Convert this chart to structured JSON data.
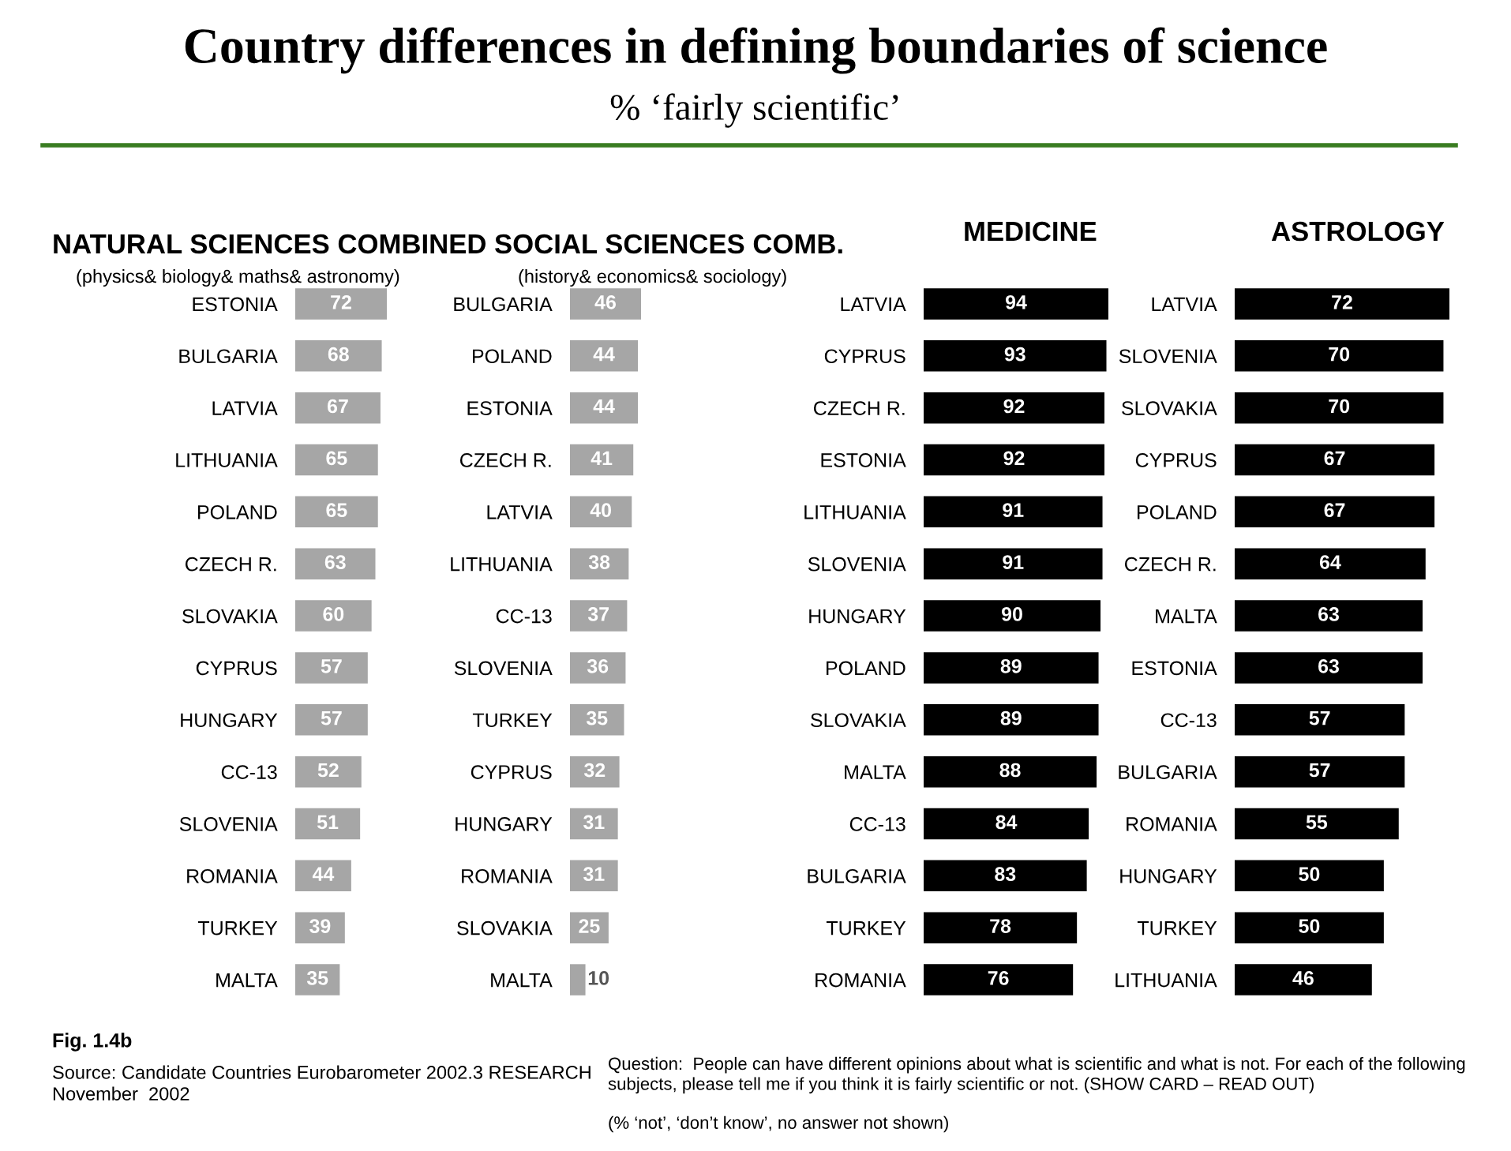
{
  "chart_data": [
    {
      "type": "other",
      "title": "Country differences in defining boundaries of science",
      "subtitle": "% ‘fairly scientific’",
      "annotations": [
        "Fig. 1.4b",
        "Source: Candidate Countries Eurobarometer 2002.3 RESEARCH\nNovember  2002",
        "Question:  People can have different opinions about what is scientific and what is not. For each of the following\nsubjects, please tell me if you think it is fairly scientific or not. (SHOW CARD – READ OUT)",
        "(% ‘not’, ‘don’t know’, no answer not shown)"
      ]
    },
    {
      "type": "bar",
      "orientation": "horizontal",
      "title": "NATURAL SCIENCES COMBINED",
      "subtitle": "(physics& biology& maths& astronomy)",
      "color": "#a6a6a6",
      "data_labels": true,
      "categories": [
        "ESTONIA",
        "BULGARIA",
        "LATVIA",
        "LITHUANIA",
        "POLAND",
        "CZECH R.",
        "SLOVAKIA",
        "CYPRUS",
        "HUNGARY",
        "CC-13",
        "SLOVENIA",
        "ROMANIA",
        "TURKEY",
        "MALTA"
      ],
      "values": [
        72,
        68,
        67,
        65,
        65,
        63,
        60,
        57,
        57,
        52,
        51,
        44,
        39,
        35
      ]
    },
    {
      "type": "bar",
      "orientation": "horizontal",
      "title": "SOCIAL SCIENCES COMB.",
      "subtitle": "(history& economics& sociology)",
      "color": "#a6a6a6",
      "data_labels": true,
      "categories": [
        "BULGARIA",
        "POLAND",
        "ESTONIA",
        "CZECH R.",
        "LATVIA",
        "LITHUANIA",
        "CC-13",
        "SLOVENIA",
        "TURKEY",
        "CYPRUS",
        "HUNGARY",
        "ROMANIA",
        "SLOVAKIA",
        "MALTA"
      ],
      "values": [
        46,
        44,
        44,
        41,
        40,
        38,
        37,
        36,
        35,
        32,
        31,
        31,
        25,
        10
      ]
    },
    {
      "type": "bar",
      "orientation": "horizontal",
      "title": "MEDICINE",
      "color": "#000000",
      "data_labels": true,
      "categories": [
        "LATVIA",
        "CYPRUS",
        "CZECH R.",
        "ESTONIA",
        "LITHUANIA",
        "SLOVENIA",
        "HUNGARY",
        "POLAND",
        "SLOVAKIA",
        "MALTA",
        "CC-13",
        "BULGARIA",
        "TURKEY",
        "ROMANIA"
      ],
      "values": [
        94,
        93,
        92,
        92,
        91,
        91,
        90,
        89,
        89,
        88,
        84,
        83,
        78,
        76
      ]
    },
    {
      "type": "bar",
      "orientation": "horizontal",
      "title": "ASTROLOGY",
      "color": "#000000",
      "data_labels": true,
      "categories": [
        "LATVIA",
        "SLOVENIA",
        "SLOVAKIA",
        "CYPRUS",
        "POLAND",
        "CZECH R.",
        "MALTA",
        "ESTONIA",
        "CC-13",
        "BULGARIA",
        "ROMANIA",
        "HUNGARY",
        "TURKEY",
        "LITHUANIA"
      ],
      "values": [
        72,
        70,
        70,
        67,
        67,
        64,
        63,
        63,
        57,
        57,
        55,
        50,
        50,
        46
      ]
    }
  ]
}
